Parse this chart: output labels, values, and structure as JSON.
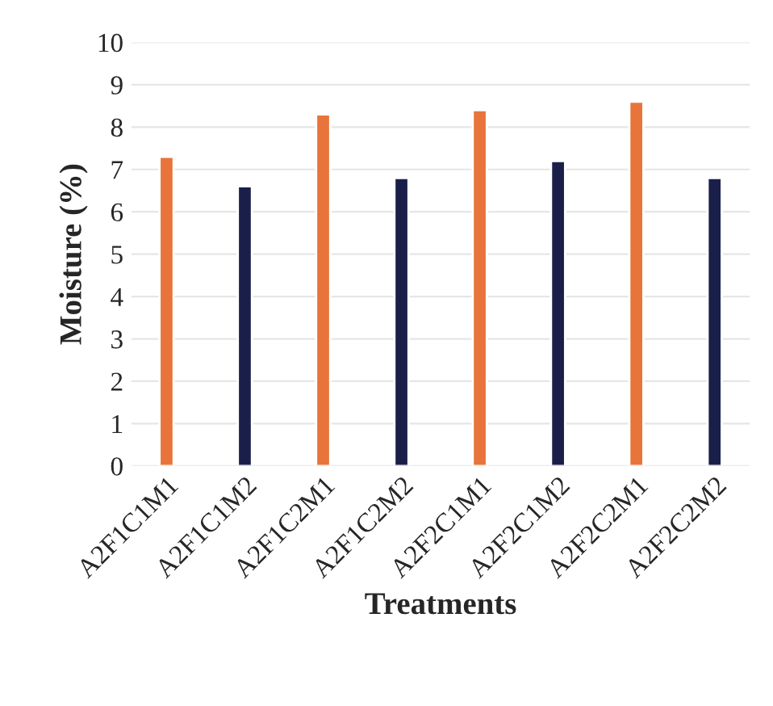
{
  "chart_data": {
    "type": "bar",
    "xlabel": "Treatments",
    "ylabel": "Moisture (%)",
    "categories": [
      "A2F1C1M1",
      "A2F1C1M2",
      "A2F1C2M1",
      "A2F1C2M2",
      "A2F2C1M1",
      "A2F2C1M2",
      "A2F2C2M1",
      "A2F2C2M2"
    ],
    "values": [
      7.3,
      6.6,
      8.3,
      6.8,
      8.4,
      7.2,
      8.6,
      6.8
    ],
    "colors": [
      "#e8743b",
      "#1a1f4a",
      "#e8743b",
      "#1a1f4a",
      "#e8743b",
      "#1a1f4a",
      "#e8743b",
      "#1a1f4a"
    ],
    "ylim": [
      0,
      10
    ],
    "yticks": [
      0,
      1,
      2,
      3,
      4,
      5,
      6,
      7,
      8,
      9,
      10
    ],
    "grid": "y",
    "legend": false
  }
}
